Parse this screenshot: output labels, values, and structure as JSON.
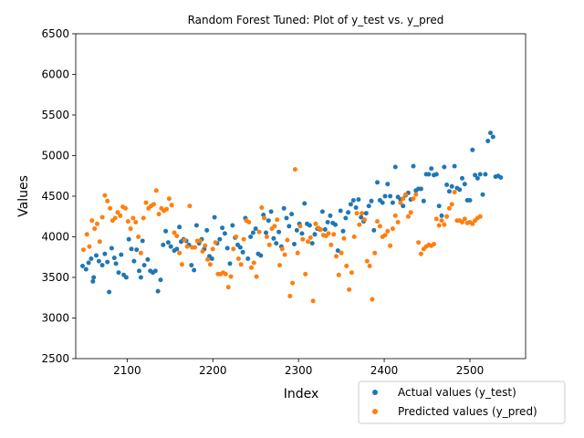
{
  "chart_data": {
    "type": "scatter",
    "title": "Random Forest Tuned: Plot of y_test vs. y_pred",
    "xlabel": "Index",
    "ylabel": "Values",
    "xlim": [
      2040,
      2565
    ],
    "ylim": [
      2500,
      6500
    ],
    "xticks": [
      2100,
      2200,
      2300,
      2400,
      2500
    ],
    "yticks": [
      2500,
      3000,
      3500,
      4000,
      4500,
      5000,
      5500,
      6000,
      6500
    ],
    "grid": false,
    "legend_position": "lower-right",
    "series": [
      {
        "name": "Actual values (y_test)",
        "color": "#1f77b4",
        "points": [
          [
            2048,
            3640
          ],
          [
            2052,
            3600
          ],
          [
            2055,
            3680
          ],
          [
            2058,
            3730
          ],
          [
            2060,
            3450
          ],
          [
            2061,
            3500
          ],
          [
            2064,
            3770
          ],
          [
            2067,
            3700
          ],
          [
            2071,
            3650
          ],
          [
            2074,
            3790
          ],
          [
            2077,
            3690
          ],
          [
            2079,
            3320
          ],
          [
            2082,
            3860
          ],
          [
            2085,
            3740
          ],
          [
            2087,
            3670
          ],
          [
            2090,
            3560
          ],
          [
            2093,
            3780
          ],
          [
            2096,
            3530
          ],
          [
            2099,
            3500
          ],
          [
            2102,
            3970
          ],
          [
            2105,
            3850
          ],
          [
            2108,
            3700
          ],
          [
            2111,
            3840
          ],
          [
            2114,
            3580
          ],
          [
            2116,
            3500
          ],
          [
            2118,
            3950
          ],
          [
            2120,
            3650
          ],
          [
            2124,
            3720
          ],
          [
            2127,
            3580
          ],
          [
            2130,
            3560
          ],
          [
            2133,
            3580
          ],
          [
            2136,
            3330
          ],
          [
            2139,
            3470
          ],
          [
            2142,
            3900
          ],
          [
            2145,
            4070
          ],
          [
            2148,
            3930
          ],
          [
            2151,
            3880
          ],
          [
            2155,
            3830
          ],
          [
            2158,
            3850
          ],
          [
            2161,
            4120
          ],
          [
            2163,
            3940
          ],
          [
            2166,
            3970
          ],
          [
            2169,
            3950
          ],
          [
            2172,
            3900
          ],
          [
            2175,
            3650
          ],
          [
            2178,
            3590
          ],
          [
            2181,
            4140
          ],
          [
            2184,
            3920
          ],
          [
            2187,
            3970
          ],
          [
            2190,
            3850
          ],
          [
            2193,
            4080
          ],
          [
            2196,
            3760
          ],
          [
            2199,
            3730
          ],
          [
            2202,
            4240
          ],
          [
            2205,
            3920
          ],
          [
            2208,
            3970
          ],
          [
            2211,
            4110
          ],
          [
            2214,
            4040
          ],
          [
            2217,
            3860
          ],
          [
            2220,
            3670
          ],
          [
            2223,
            4140
          ],
          [
            2226,
            3990
          ],
          [
            2229,
            3900
          ],
          [
            2232,
            3870
          ],
          [
            2235,
            3810
          ],
          [
            2238,
            4230
          ],
          [
            2241,
            3730
          ],
          [
            2244,
            4000
          ],
          [
            2247,
            4050
          ],
          [
            2250,
            4100
          ],
          [
            2253,
            3790
          ],
          [
            2256,
            3770
          ],
          [
            2259,
            4270
          ],
          [
            2262,
            4050
          ],
          [
            2265,
            4200
          ],
          [
            2268,
            4310
          ],
          [
            2271,
            3980
          ],
          [
            2274,
            3920
          ],
          [
            2277,
            4060
          ],
          [
            2280,
            3880
          ],
          [
            2283,
            4350
          ],
          [
            2286,
            4230
          ],
          [
            2289,
            4130
          ],
          [
            2292,
            4280
          ],
          [
            2295,
            3910
          ],
          [
            2298,
            4080
          ],
          [
            2301,
            4160
          ],
          [
            2304,
            4040
          ],
          [
            2307,
            4410
          ],
          [
            2310,
            4160
          ],
          [
            2313,
            4140
          ],
          [
            2316,
            3920
          ],
          [
            2319,
            4030
          ],
          [
            2322,
            4100
          ],
          [
            2325,
            4090
          ],
          [
            2328,
            4310
          ],
          [
            2331,
            4090
          ],
          [
            2334,
            4180
          ],
          [
            2337,
            4260
          ],
          [
            2340,
            4170
          ],
          [
            2343,
            4150
          ],
          [
            2346,
            3830
          ],
          [
            2349,
            4320
          ],
          [
            2352,
            4070
          ],
          [
            2355,
            4230
          ],
          [
            2358,
            4300
          ],
          [
            2361,
            4400
          ],
          [
            2364,
            4450
          ],
          [
            2367,
            4360
          ],
          [
            2370,
            4460
          ],
          [
            2373,
            4240
          ],
          [
            2376,
            4190
          ],
          [
            2379,
            4290
          ],
          [
            2382,
            4380
          ],
          [
            2385,
            4440
          ],
          [
            2388,
            4080
          ],
          [
            2392,
            4670
          ],
          [
            2395,
            4450
          ],
          [
            2398,
            4420
          ],
          [
            2401,
            4500
          ],
          [
            2404,
            4650
          ],
          [
            2407,
            4500
          ],
          [
            2410,
            4420
          ],
          [
            2413,
            4860
          ],
          [
            2416,
            4490
          ],
          [
            2419,
            4460
          ],
          [
            2422,
            4380
          ],
          [
            2425,
            4510
          ],
          [
            2428,
            4540
          ],
          [
            2431,
            4460
          ],
          [
            2434,
            4870
          ],
          [
            2437,
            4570
          ],
          [
            2440,
            4590
          ],
          [
            2443,
            4590
          ],
          [
            2446,
            4440
          ],
          [
            2449,
            4770
          ],
          [
            2452,
            4770
          ],
          [
            2455,
            4840
          ],
          [
            2458,
            4760
          ],
          [
            2461,
            4770
          ],
          [
            2464,
            4380
          ],
          [
            2467,
            4260
          ],
          [
            2470,
            4860
          ],
          [
            2473,
            4640
          ],
          [
            2476,
            4560
          ],
          [
            2479,
            4620
          ],
          [
            2482,
            4870
          ],
          [
            2485,
            4600
          ],
          [
            2488,
            4580
          ],
          [
            2491,
            4720
          ],
          [
            2494,
            4650
          ],
          [
            2497,
            4450
          ],
          [
            2500,
            4450
          ],
          [
            2503,
            5070
          ],
          [
            2506,
            4760
          ],
          [
            2509,
            4720
          ],
          [
            2512,
            4770
          ],
          [
            2515,
            4520
          ],
          [
            2518,
            4770
          ],
          [
            2521,
            5180
          ],
          [
            2524,
            5280
          ],
          [
            2527,
            5230
          ],
          [
            2530,
            4740
          ],
          [
            2533,
            4750
          ],
          [
            2536,
            4730
          ]
        ]
      },
      {
        "name": "Predicted values (y_pred)",
        "color": "#ff7f0e",
        "points": [
          [
            2049,
            3840
          ],
          [
            2053,
            4030
          ],
          [
            2056,
            3880
          ],
          [
            2059,
            4200
          ],
          [
            2062,
            4100
          ],
          [
            2065,
            4160
          ],
          [
            2068,
            3940
          ],
          [
            2071,
            4240
          ],
          [
            2074,
            4510
          ],
          [
            2077,
            4440
          ],
          [
            2080,
            4350
          ],
          [
            2083,
            4200
          ],
          [
            2086,
            4230
          ],
          [
            2089,
            4300
          ],
          [
            2092,
            4260
          ],
          [
            2095,
            4370
          ],
          [
            2098,
            4350
          ],
          [
            2101,
            4190
          ],
          [
            2104,
            4100
          ],
          [
            2107,
            4230
          ],
          [
            2110,
            4180
          ],
          [
            2113,
            4000
          ],
          [
            2116,
            3800
          ],
          [
            2119,
            4230
          ],
          [
            2122,
            4420
          ],
          [
            2125,
            4350
          ],
          [
            2128,
            4380
          ],
          [
            2131,
            4400
          ],
          [
            2134,
            4570
          ],
          [
            2137,
            4280
          ],
          [
            2140,
            4350
          ],
          [
            2143,
            4320
          ],
          [
            2146,
            4340
          ],
          [
            2149,
            4470
          ],
          [
            2152,
            4390
          ],
          [
            2155,
            4050
          ],
          [
            2158,
            4010
          ],
          [
            2161,
            3800
          ],
          [
            2164,
            3660
          ],
          [
            2167,
            3960
          ],
          [
            2170,
            3880
          ],
          [
            2173,
            4380
          ],
          [
            2176,
            3870
          ],
          [
            2179,
            3870
          ],
          [
            2182,
            3950
          ],
          [
            2185,
            3950
          ],
          [
            2188,
            3820
          ],
          [
            2191,
            3890
          ],
          [
            2194,
            3720
          ],
          [
            2197,
            3660
          ],
          [
            2200,
            3850
          ],
          [
            2203,
            3930
          ],
          [
            2206,
            3540
          ],
          [
            2209,
            3540
          ],
          [
            2212,
            3560
          ],
          [
            2215,
            3540
          ],
          [
            2218,
            3380
          ],
          [
            2221,
            3510
          ],
          [
            2224,
            3850
          ],
          [
            2227,
            4000
          ],
          [
            2230,
            3730
          ],
          [
            2233,
            3660
          ],
          [
            2236,
            3970
          ],
          [
            2239,
            4200
          ],
          [
            2242,
            4180
          ],
          [
            2245,
            3620
          ],
          [
            2248,
            3680
          ],
          [
            2251,
            3510
          ],
          [
            2254,
            4060
          ],
          [
            2257,
            4360
          ],
          [
            2260,
            4230
          ],
          [
            2263,
            4000
          ],
          [
            2266,
            3900
          ],
          [
            2269,
            4100
          ],
          [
            2272,
            4130
          ],
          [
            2275,
            4210
          ],
          [
            2278,
            3650
          ],
          [
            2281,
            3850
          ],
          [
            2284,
            3780
          ],
          [
            2287,
            3960
          ],
          [
            2290,
            3270
          ],
          [
            2293,
            3430
          ],
          [
            2296,
            4830
          ],
          [
            2299,
            3800
          ],
          [
            2302,
            4130
          ],
          [
            2305,
            3970
          ],
          [
            2308,
            3540
          ],
          [
            2311,
            3940
          ],
          [
            2314,
            3990
          ],
          [
            2317,
            3210
          ],
          [
            2320,
            4160
          ],
          [
            2323,
            4110
          ],
          [
            2326,
            4090
          ],
          [
            2329,
            4020
          ],
          [
            2332,
            4010
          ],
          [
            2335,
            4040
          ],
          [
            2338,
            3900
          ],
          [
            2341,
            4030
          ],
          [
            2344,
            3760
          ],
          [
            2347,
            3530
          ],
          [
            2350,
            3800
          ],
          [
            2353,
            3980
          ],
          [
            2356,
            3640
          ],
          [
            2359,
            3350
          ],
          [
            2362,
            3560
          ],
          [
            2365,
            4000
          ],
          [
            2368,
            4290
          ],
          [
            2371,
            4150
          ],
          [
            2374,
            4290
          ],
          [
            2377,
            4210
          ],
          [
            2380,
            3700
          ],
          [
            2383,
            3640
          ],
          [
            2386,
            3230
          ],
          [
            2389,
            3800
          ],
          [
            2392,
            4190
          ],
          [
            2395,
            4130
          ],
          [
            2398,
            4000
          ],
          [
            2401,
            4020
          ],
          [
            2404,
            4070
          ],
          [
            2407,
            3890
          ],
          [
            2410,
            4100
          ],
          [
            2413,
            4260
          ],
          [
            2416,
            4180
          ],
          [
            2419,
            4420
          ],
          [
            2422,
            4470
          ],
          [
            2425,
            4520
          ],
          [
            2428,
            4250
          ],
          [
            2431,
            4300
          ],
          [
            2434,
            4470
          ],
          [
            2437,
            4520
          ],
          [
            2440,
            3930
          ],
          [
            2443,
            3790
          ],
          [
            2446,
            3850
          ],
          [
            2449,
            3880
          ],
          [
            2452,
            3900
          ],
          [
            2455,
            3890
          ],
          [
            2458,
            3910
          ],
          [
            2461,
            4220
          ],
          [
            2464,
            4140
          ],
          [
            2467,
            4200
          ],
          [
            2470,
            4150
          ],
          [
            2473,
            4250
          ],
          [
            2476,
            4350
          ],
          [
            2479,
            4400
          ],
          [
            2482,
            4550
          ],
          [
            2485,
            4200
          ],
          [
            2488,
            4200
          ],
          [
            2491,
            4180
          ],
          [
            2494,
            4220
          ],
          [
            2497,
            4170
          ],
          [
            2500,
            4180
          ],
          [
            2503,
            4160
          ],
          [
            2506,
            4200
          ],
          [
            2509,
            4230
          ],
          [
            2512,
            4250
          ]
        ]
      }
    ]
  }
}
